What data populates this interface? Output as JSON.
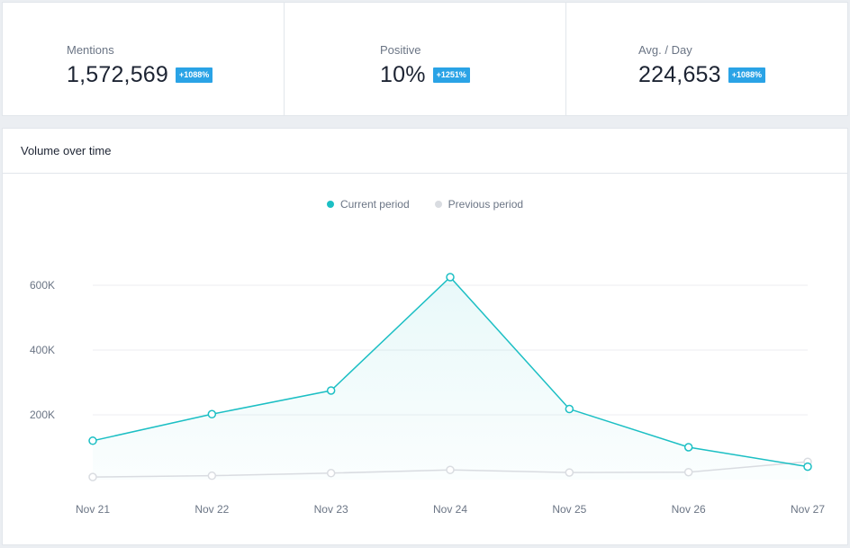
{
  "stats": [
    {
      "label": "Mentions",
      "value": "1,572,569",
      "badge": "+1088%"
    },
    {
      "label": "Positive",
      "value": "10%",
      "badge": "+1251%"
    },
    {
      "label": "Avg. / Day",
      "value": "224,653",
      "badge": "+1088%"
    }
  ],
  "panel": {
    "title": "Volume over time"
  },
  "colors": {
    "current": "#1cbfc4",
    "previous": "#d9dce1",
    "badge": "#2aa3e6"
  },
  "chart_data": {
    "type": "line",
    "x": [
      "Nov 21",
      "Nov 22",
      "Nov 23",
      "Nov 24",
      "Nov 25",
      "Nov 26",
      "Nov 27"
    ],
    "series": [
      {
        "name": "Current period",
        "values": [
          120000,
          202000,
          275000,
          625000,
          218000,
          100000,
          40000
        ],
        "area": true
      },
      {
        "name": "Previous period",
        "values": [
          8000,
          12000,
          20000,
          30000,
          22000,
          23000,
          55000
        ],
        "area": false
      }
    ],
    "yticks": [
      200000,
      400000,
      600000
    ],
    "ytick_labels": [
      "200K",
      "400K",
      "600K"
    ],
    "ylim": [
      0,
      650000
    ],
    "grid": true,
    "legend": "top-center"
  }
}
